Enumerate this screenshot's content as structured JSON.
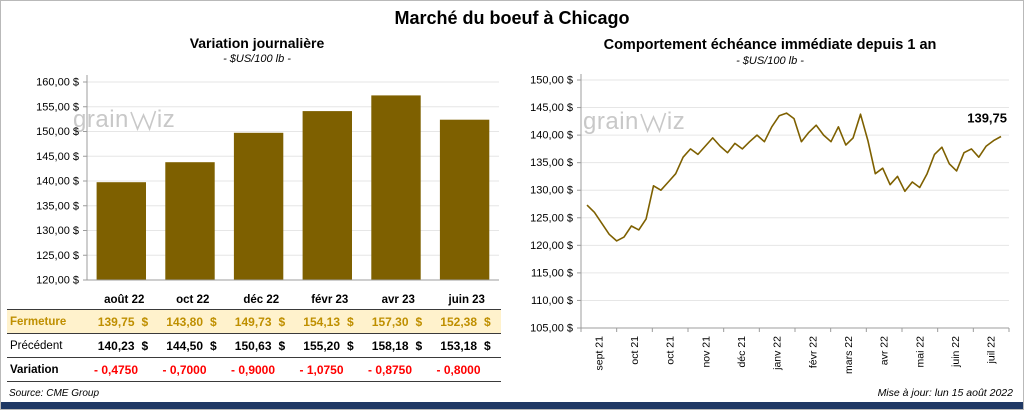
{
  "page": {
    "title": "Marché du boeuf à Chicago",
    "source": "Source: CME Group",
    "updated": "Mise à jour: lun 15 août 2022",
    "watermark_pre": "grain",
    "watermark_post": "iz"
  },
  "colors": {
    "series": "#7E6000",
    "grid": "#E6E6E6",
    "axis": "#9C9C9C",
    "fermeture_bg": "#FFF2CC",
    "fermeture_text": "#BF8F00",
    "variation_text": "#FF0000",
    "footer_bar": "#1F3864",
    "watermark": "#C8C8C8"
  },
  "chart_data": [
    {
      "type": "bar",
      "title": "Variation journalière",
      "subtitle": "- $US/100 lb -",
      "categories": [
        "août 22",
        "oct 22",
        "déc 22",
        "févr 23",
        "avr 23",
        "juin 23"
      ],
      "values": [
        139.75,
        143.8,
        149.73,
        154.13,
        157.3,
        152.38
      ],
      "ylim": [
        120,
        160
      ],
      "ytick_step": 5,
      "ytick_labels": [
        "160,00 $",
        "155,00 $",
        "150,00 $",
        "145,00 $",
        "140,00 $",
        "135,00 $",
        "130,00 $",
        "125,00 $",
        "120,00 $"
      ],
      "grid": true,
      "legend": false
    },
    {
      "type": "line",
      "title": "Comportement échéance immédiate depuis 1 an",
      "subtitle": "- $US/100 lb -",
      "x_labels": [
        "sept 21",
        "oct 21",
        "oct 21",
        "nov 21",
        "déc 21",
        "janv 22",
        "févr 22",
        "mars 22",
        "avr 22",
        "mai 22",
        "juin 22",
        "juil 22"
      ],
      "values": [
        127.3,
        126.0,
        124.0,
        122.0,
        120.8,
        121.5,
        123.5,
        122.8,
        124.8,
        130.8,
        130.0,
        131.5,
        133.0,
        136.0,
        137.5,
        136.5,
        138.0,
        139.5,
        138.0,
        136.8,
        138.5,
        137.5,
        138.8,
        140.0,
        138.8,
        141.5,
        143.5,
        144.0,
        143.0,
        138.8,
        140.5,
        141.8,
        140.0,
        138.8,
        141.5,
        138.2,
        139.5,
        143.8,
        139.0,
        133.0,
        134.0,
        131.0,
        132.5,
        129.8,
        131.5,
        130.5,
        133.0,
        136.5,
        137.8,
        134.8,
        133.5,
        136.8,
        137.5,
        136.0,
        138.0,
        139.0,
        139.75
      ],
      "ylim": [
        105,
        150
      ],
      "ytick_step": 5,
      "ytick_labels": [
        "150,00 $",
        "145,00 $",
        "140,00 $",
        "135,00 $",
        "130,00 $",
        "125,00 $",
        "120,00 $",
        "115,00 $",
        "110,00 $",
        "105,00 $"
      ],
      "last_label": "139,75",
      "grid": true,
      "legend": false
    }
  ],
  "table": {
    "rows": [
      {
        "id": "fermeture",
        "label": "Fermeture",
        "values": [
          "139,75",
          "143,80",
          "149,73",
          "154,13",
          "157,30",
          "152,38"
        ],
        "suffix": "$"
      },
      {
        "id": "precedent",
        "label": "Précédent",
        "values": [
          "140,23",
          "144,50",
          "150,63",
          "155,20",
          "158,18",
          "153,18"
        ],
        "suffix": "$"
      },
      {
        "id": "variation",
        "label": "Variation",
        "values": [
          "- 0,4750",
          "- 0,7000",
          "- 0,9000",
          "- 1,0750",
          "- 0,8750",
          "- 0,8000"
        ],
        "suffix": ""
      }
    ]
  }
}
